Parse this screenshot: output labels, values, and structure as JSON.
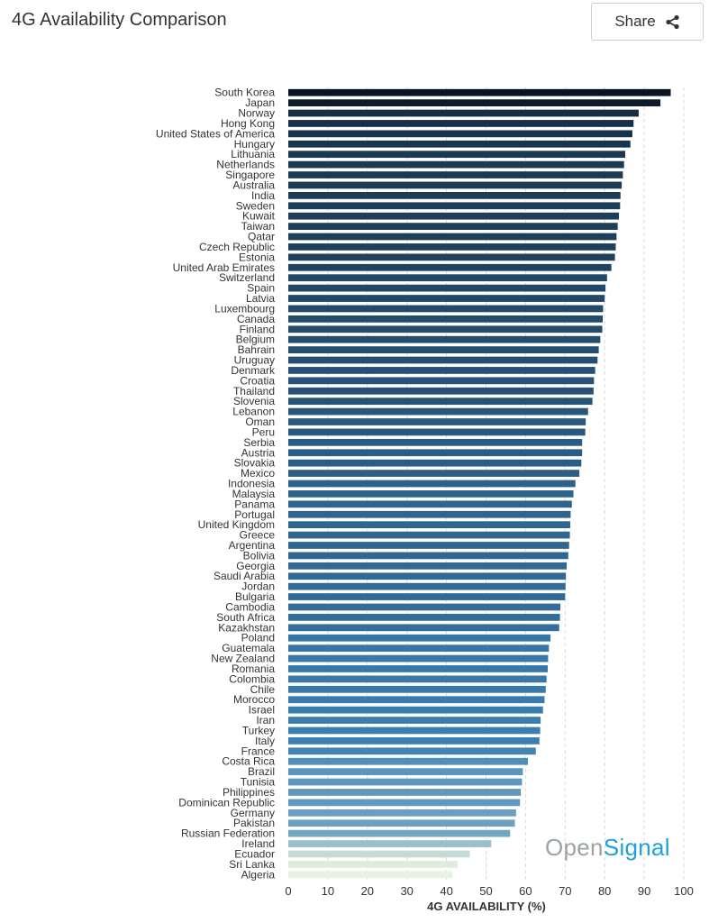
{
  "header": {
    "title": "4G Availability Comparison",
    "share_label": "Share"
  },
  "watermark": {
    "part1": "Open",
    "part2": "Signal"
  },
  "colors": {
    "dark": "#0b1220",
    "mid": "#3a7fb2",
    "light": "#e8f3df"
  },
  "icons": {
    "share": "share-icon"
  },
  "chart_data": {
    "type": "bar",
    "orientation": "horizontal",
    "title": "",
    "xlabel": "4G AVAILABILITY (%)",
    "ylabel": "",
    "xlim": [
      0,
      100
    ],
    "xticks": [
      0,
      10,
      20,
      30,
      40,
      50,
      60,
      70,
      80,
      90,
      100
    ],
    "grid": "vertical dashed",
    "categories": [
      "South Korea",
      "Japan",
      "Norway",
      "Hong Kong",
      "United States of America",
      "Hungary",
      "Lithuania",
      "Netherlands",
      "Singapore",
      "Australia",
      "India",
      "Sweden",
      "Kuwait",
      "Taiwan",
      "Qatar",
      "Czech Republic",
      "Estonia",
      "United Arab Emirates",
      "Switzerland",
      "Spain",
      "Latvia",
      "Luxembourg",
      "Canada",
      "Finland",
      "Belgium",
      "Bahrain",
      "Uruguay",
      "Denmark",
      "Croatia",
      "Thailand",
      "Slovenia",
      "Lebanon",
      "Oman",
      "Peru",
      "Serbia",
      "Austria",
      "Slovakia",
      "Mexico",
      "Indonesia",
      "Malaysia",
      "Panama",
      "Portugal",
      "United Kingdom",
      "Greece",
      "Argentina",
      "Bolivia",
      "Georgia",
      "Saudi Arabia",
      "Jordan",
      "Bulgaria",
      "Cambodia",
      "South Africa",
      "Kazakhstan",
      "Poland",
      "Guatemala",
      "New Zealand",
      "Romania",
      "Colombia",
      "Chile",
      "Morocco",
      "Israel",
      "Iran",
      "Turkey",
      "Italy",
      "France",
      "Costa Rica",
      "Brazil",
      "Tunisia",
      "Philippines",
      "Dominican Republic",
      "Germany",
      "Pakistan",
      "Russian Federation",
      "Ireland",
      "Ecuador",
      "Sri Lanka",
      "Algeria"
    ],
    "values": [
      96.7,
      94.1,
      88.6,
      87.3,
      87.0,
      86.5,
      85.2,
      84.9,
      84.6,
      84.3,
      84.0,
      83.9,
      83.6,
      83.3,
      83.0,
      82.8,
      82.6,
      81.7,
      80.6,
      80.2,
      80.0,
      79.6,
      79.5,
      79.4,
      78.9,
      78.5,
      78.2,
      77.6,
      77.3,
      77.2,
      76.9,
      75.8,
      75.2,
      75.1,
      74.3,
      74.3,
      74.1,
      73.6,
      72.6,
      72.1,
      71.7,
      71.4,
      71.3,
      71.2,
      71.0,
      70.8,
      70.4,
      70.2,
      70.1,
      70.0,
      68.8,
      68.7,
      68.5,
      66.3,
      65.9,
      65.7,
      65.6,
      65.3,
      65.1,
      64.8,
      64.4,
      63.8,
      63.7,
      63.5,
      62.6,
      60.6,
      59.3,
      59.1,
      58.8,
      58.6,
      57.6,
      57.3,
      56.1,
      51.3,
      45.9,
      42.8,
      41.5
    ]
  }
}
